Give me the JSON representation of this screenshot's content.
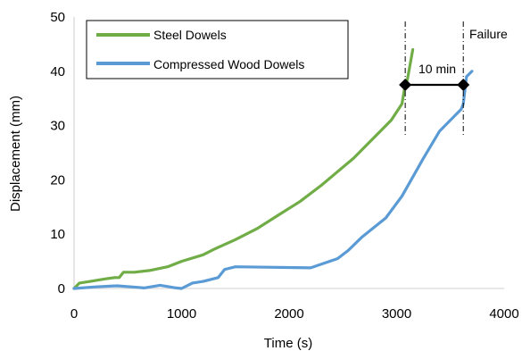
{
  "chart_data": {
    "type": "line",
    "xlabel": "Time (s)",
    "ylabel": "Displacement (mm)",
    "xlim": [
      0,
      4000
    ],
    "ylim": [
      0,
      50
    ],
    "x_ticks": [
      "0",
      "1000",
      "2000",
      "3000",
      "4000"
    ],
    "y_ticks": [
      "0",
      "10",
      "20",
      "30",
      "40",
      "50"
    ],
    "grid": false,
    "legend": "top-left",
    "series": [
      {
        "name": "Steel Dowels",
        "color": "#70AD47",
        "x": [
          0,
          50,
          150,
          300,
          380,
          420,
          460,
          560,
          700,
          870,
          1000,
          1200,
          1300,
          1500,
          1700,
          1900,
          2100,
          2300,
          2450,
          2600,
          2700,
          2850,
          2950,
          3050,
          3080,
          3100,
          3150
        ],
        "y": [
          0,
          1.0,
          1.3,
          1.8,
          2.0,
          2.0,
          3.0,
          3.0,
          3.3,
          4.0,
          5.0,
          6.2,
          7.2,
          9.0,
          11.0,
          13.5,
          16.0,
          19.0,
          21.5,
          24.0,
          26.0,
          29.0,
          31.0,
          34.0,
          37.5,
          38.5,
          44.0
        ]
      },
      {
        "name": "Compressed Wood Dowels",
        "color": "#5B9BD5",
        "x": [
          0,
          200,
          400,
          600,
          650,
          800,
          950,
          1000,
          1100,
          1200,
          1340,
          1400,
          1500,
          2200,
          2450,
          2550,
          2680,
          2900,
          3050,
          3250,
          3400,
          3600,
          3620,
          3650,
          3700
        ],
        "y": [
          0,
          0.3,
          0.5,
          0.2,
          0.1,
          0.6,
          0.1,
          0.0,
          1.0,
          1.3,
          2.0,
          3.5,
          4.0,
          3.8,
          5.5,
          7.0,
          9.5,
          13.0,
          17.0,
          24.0,
          29.0,
          33.0,
          34.0,
          39.0,
          40.0
        ]
      }
    ],
    "annotations": {
      "failure_label": "Failure",
      "interval_label": "10 min",
      "failure_lines_x": [
        3080,
        3620
      ],
      "interval_y": 37.5,
      "marker_color": "#000000"
    }
  }
}
